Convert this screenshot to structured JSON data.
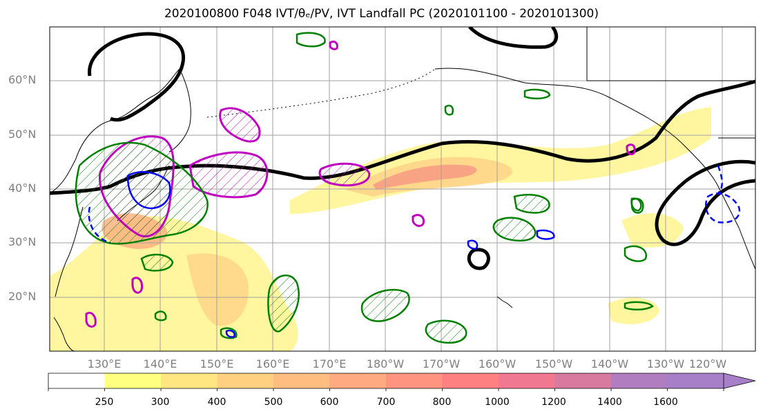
{
  "title": "2020100800 F048 IVT/θₑ/PV, IVT Landfall PC (2020101100 - 2020101300)",
  "map": {
    "lat_labels": [
      "60°N",
      "50°N",
      "40°N",
      "30°N",
      "20°N"
    ],
    "lon_labels": [
      "130°E",
      "140°E",
      "150°E",
      "160°E",
      "170°E",
      "180°W",
      "170°W",
      "160°W",
      "150°W",
      "140°W",
      "130°W",
      "120°W"
    ]
  },
  "colorbar": {
    "labels": [
      "250",
      "300",
      "400",
      "500",
      "600",
      "700",
      "800",
      "1000",
      "1200",
      "1400",
      "1600"
    ],
    "colors": [
      "#ffffff",
      "#ffff80",
      "#ffe680",
      "#ffd080",
      "#ffbd80",
      "#ffaa80",
      "#ff9580",
      "#ff8080",
      "#f07890",
      "#d87aa0",
      "#b07ec0",
      "#a67fc8"
    ]
  },
  "contour_colors": {
    "theta_e": "#000000",
    "pv_positive": "#008000",
    "pv_negative": "#0000ff",
    "landfall": "#c000c0"
  }
}
